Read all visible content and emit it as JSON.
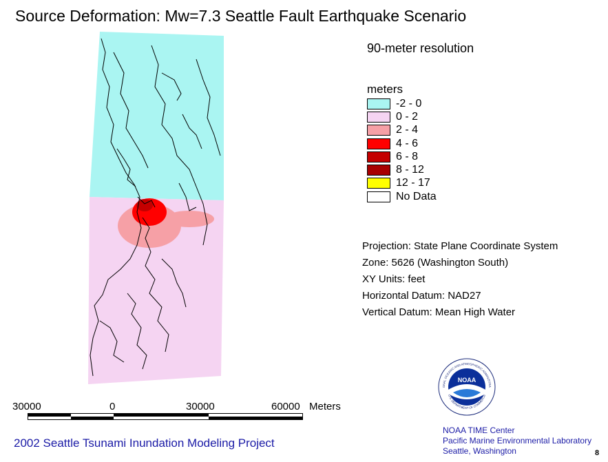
{
  "title": "Source Deformation: Mw=7.3 Seattle Fault Earthquake Scenario",
  "resolution": "90-meter resolution",
  "legend": {
    "title": "meters",
    "items": [
      {
        "label": "-2 - 0",
        "color": "#aaf5f2"
      },
      {
        "label": "0 - 2",
        "color": "#f5d4f2"
      },
      {
        "label": "2 - 4",
        "color": "#f6a0a6"
      },
      {
        "label": "4 - 6",
        "color": "#ff0000"
      },
      {
        "label": "6 - 8",
        "color": "#c40000"
      },
      {
        "label": "8 - 12",
        "color": "#a80000"
      },
      {
        "label": "12 - 17",
        "color": "#ffff00"
      },
      {
        "label": "No Data",
        "color": "#ffffff"
      }
    ]
  },
  "info": {
    "projection": "Projection: State Plane Coordinate System",
    "zone": "Zone: 5626 (Washington South)",
    "xy_units": "XY Units: feet",
    "horizontal_datum": "Horizontal Datum: NAD27",
    "vertical_datum": "Vertical Datum: Mean High Water"
  },
  "scale": {
    "labels": [
      "30000",
      "0",
      "30000",
      "60000"
    ],
    "unit": "Meters"
  },
  "footer": {
    "project": "2002 Seattle Tsunami Inundation Modeling Project",
    "org_line1": "NOAA TIME Center",
    "org_line2": "Pacific Marine Environmental Laboratory",
    "org_line3": "Seattle, Washington",
    "page": "8"
  },
  "logo": {
    "text": "NOAA",
    "ring_text": "NATIONAL OCEANIC AND ATMOSPHERIC ADMINISTRATION",
    "ring_text_bottom": "U.S. DEPARTMENT OF COMMERCE"
  }
}
